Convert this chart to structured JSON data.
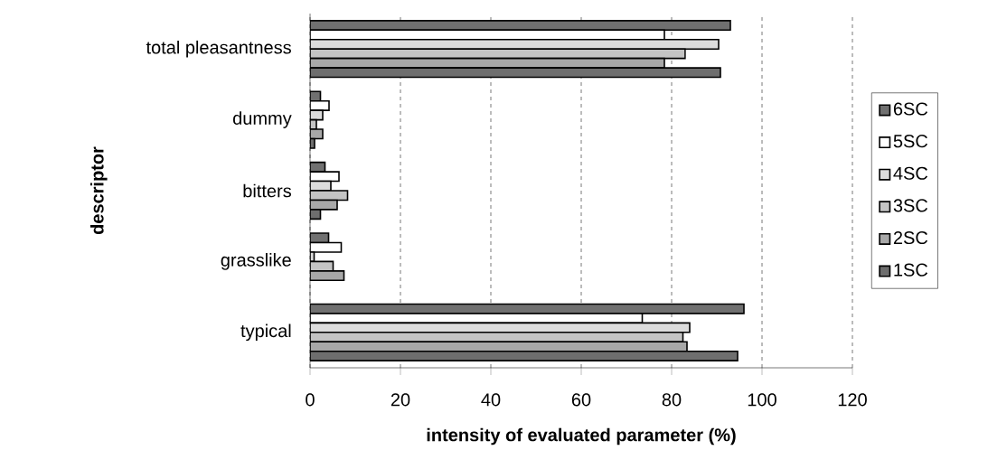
{
  "chart_data": {
    "type": "bar",
    "orientation": "horizontal",
    "xlabel": "intensity of evaluated parameter (%)",
    "ylabel": "descriptor",
    "categories": [
      "total pleasantness",
      "dummy",
      "bitters",
      "grasslike",
      "typical"
    ],
    "series": [
      {
        "name": "6SC",
        "color": "#707070",
        "values": [
          93,
          2.3,
          3.3,
          4.1,
          96
        ]
      },
      {
        "name": "5SC",
        "color": "#ffffff",
        "values": [
          78.4,
          4.2,
          6.4,
          6.9,
          73.5
        ]
      },
      {
        "name": "4SC",
        "color": "#dcdcdc",
        "values": [
          90.4,
          2.8,
          4.6,
          0.9,
          84
        ]
      },
      {
        "name": "3SC",
        "color": "#c4c4c4",
        "values": [
          83,
          1.4,
          8.3,
          5.1,
          82.5
        ]
      },
      {
        "name": "2SC",
        "color": "#a8a8a8",
        "values": [
          78.4,
          2.8,
          6,
          7.5,
          83.4
        ]
      },
      {
        "name": "1SC",
        "color": "#6e6e6e",
        "values": [
          90.8,
          1,
          2.3,
          null,
          94.6
        ]
      }
    ],
    "xlim": [
      0,
      120
    ],
    "xticks": [
      0,
      20,
      40,
      60,
      80,
      100,
      120
    ],
    "grid": "x",
    "legend": "right"
  }
}
